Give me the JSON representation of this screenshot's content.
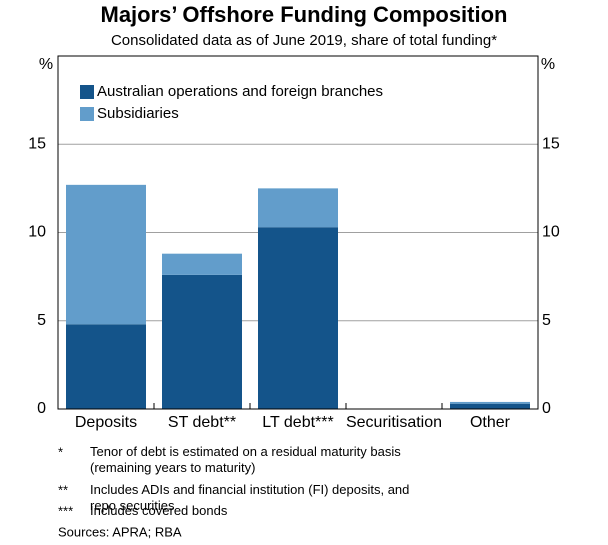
{
  "chart_data": {
    "type": "stacked-bar",
    "title": "Majors’ Offshore Funding Composition",
    "subtitle": "Consolidated data as of June 2019, share of total funding*",
    "ylabel": "%",
    "y2label": "%",
    "categories": [
      "Deposits",
      "ST debt**",
      "LT debt***",
      "Securitisation",
      "Other"
    ],
    "series": [
      {
        "name": "Australian operations and foreign branches",
        "color": "#14548a",
        "values": [
          4.8,
          7.6,
          10.3,
          0,
          0.3
        ]
      },
      {
        "name": "Subsidiaries",
        "color": "#629dcb",
        "values": [
          7.9,
          1.2,
          2.2,
          0,
          0.1
        ]
      }
    ],
    "ylim": [
      0,
      20
    ],
    "yticks": [
      0,
      5,
      10,
      15
    ],
    "y2lim": [
      0,
      20
    ],
    "y2ticks": [
      0,
      5,
      10,
      15
    ],
    "grid": true,
    "legend": "top-left",
    "notes": [
      {
        "marker": "*",
        "text": "Tenor of debt is estimated on a residual maturity basis (remaining years to maturity)"
      },
      {
        "marker": "**",
        "text": "Includes ADIs and financial institution (FI) deposits, and repo securities"
      },
      {
        "marker": "***",
        "text": "Includes covered bonds"
      }
    ],
    "source": "Sources:  APRA; RBA"
  }
}
